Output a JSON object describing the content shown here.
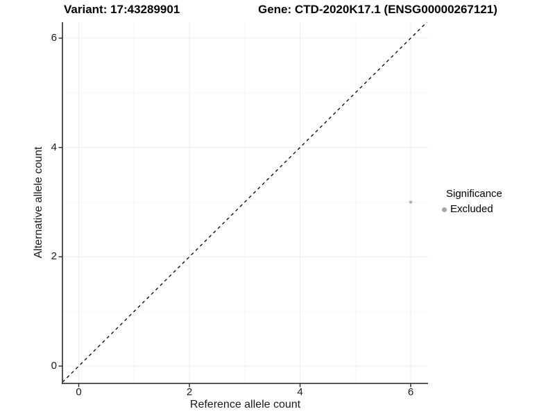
{
  "titles": {
    "variant": "Variant: 17:43289901",
    "gene": "Gene: CTD-2020K17.1 (ENSG00000267121)"
  },
  "chart_data": {
    "type": "scatter",
    "title_left": "Variant: 17:43289901",
    "title_right": "Gene: CTD-2020K17.1 (ENSG00000267121)",
    "xlabel": "Reference allele count",
    "ylabel": "Alternative allele count",
    "xlim": [
      -0.3,
      6.3
    ],
    "ylim": [
      -0.3,
      6.3
    ],
    "x_ticks": [
      0,
      2,
      4,
      6
    ],
    "y_ticks": [
      0,
      2,
      4,
      6
    ],
    "minor_gridlines": [
      1,
      3,
      5
    ],
    "grid": true,
    "reference_line": {
      "type": "identity y=x",
      "style": "dashed",
      "color": "#000000"
    },
    "series": [
      {
        "name": "Excluded",
        "color": "#b3b3b3",
        "point_radius": 2.3,
        "points": [
          {
            "x": 6,
            "y": 3
          }
        ]
      }
    ],
    "legend": {
      "title": "Significance",
      "position": "right",
      "items": [
        {
          "label": "Excluded",
          "color": "#a6a6a6"
        }
      ]
    }
  },
  "style": {
    "axis_line_color": "#404040",
    "tick_color": "#333333",
    "grid_major_color": "#ececec",
    "grid_minor_color": "#f5f5f5"
  }
}
